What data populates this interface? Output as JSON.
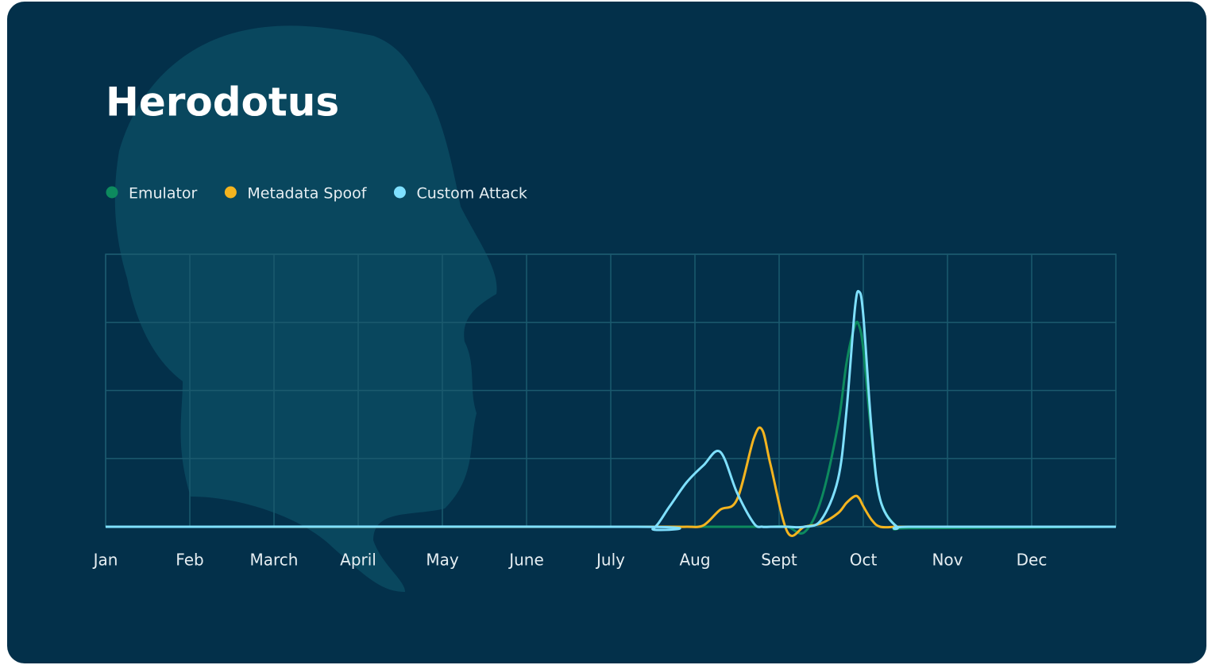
{
  "chart_data": {
    "type": "line",
    "title": "Herodotus",
    "x": [
      0,
      6.3,
      6.5,
      6.7,
      6.9,
      7.1,
      7.3,
      7.5,
      7.7,
      7.8,
      7.9,
      8.1,
      8.3,
      8.5,
      8.7,
      8.8,
      8.9,
      8.95,
      9.0,
      9.1,
      9.2,
      9.4,
      9.6,
      12
    ],
    "series": [
      {
        "name": "Emulator",
        "color": "#0d8a5e",
        "values": [
          0,
          0,
          0,
          0,
          0,
          0,
          0,
          0,
          0,
          0,
          0,
          0,
          -0.08,
          0.4,
          1.5,
          2.4,
          2.95,
          2.95,
          2.6,
          1.3,
          0.4,
          0,
          -0.02,
          0
        ]
      },
      {
        "name": "Metadata Spoof",
        "color": "#f4b41f",
        "values": [
          0,
          0,
          0,
          0,
          0,
          0.02,
          0.25,
          0.4,
          1.3,
          1.42,
          0.9,
          -0.08,
          0,
          0.05,
          0.2,
          0.35,
          0.45,
          0.42,
          0.3,
          0.1,
          0,
          0,
          0,
          0
        ]
      },
      {
        "name": "Custom Attack",
        "color": "#7fe0ff",
        "values": [
          0,
          0,
          -0.03,
          0.3,
          0.65,
          0.9,
          1.1,
          0.5,
          0.05,
          0,
          0,
          0,
          0,
          0.1,
          0.7,
          1.7,
          3.2,
          3.45,
          3.1,
          1.4,
          0.4,
          0,
          0,
          0
        ]
      }
    ],
    "xlim": [
      0,
      12
    ],
    "xticks": [
      {
        "value": 0,
        "label": "Jan"
      },
      {
        "value": 1,
        "label": "Feb"
      },
      {
        "value": 2,
        "label": "March"
      },
      {
        "value": 3,
        "label": "April"
      },
      {
        "value": 4,
        "label": "May"
      },
      {
        "value": 5,
        "label": "June"
      },
      {
        "value": 6,
        "label": "July"
      },
      {
        "value": 7,
        "label": "Aug"
      },
      {
        "value": 8,
        "label": "Sept"
      },
      {
        "value": 9,
        "label": "Oct"
      },
      {
        "value": 10,
        "label": "Nov"
      },
      {
        "value": 11,
        "label": "Dec"
      }
    ],
    "ylim": [
      0,
      4
    ],
    "yticks": [
      0,
      1,
      2,
      3,
      4
    ],
    "show_ytick_labels": false,
    "grid": true,
    "smooth": true
  }
}
